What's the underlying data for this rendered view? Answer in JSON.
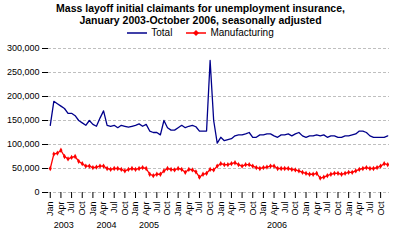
{
  "chart_data": {
    "type": "line",
    "title": "Mass layoff initial claimants for unemployment insurance,\nJanuary 2003-October 2006, seasonally adjusted",
    "categories": [
      "Jan",
      null,
      null,
      "Apr",
      null,
      null,
      "Jul",
      null,
      null,
      "Oct",
      null,
      null,
      "Jan",
      null,
      null,
      "Apr",
      null,
      null,
      "Jul",
      null,
      null,
      "Oct",
      null,
      null,
      "Jan",
      null,
      null,
      "Apr",
      null,
      null,
      "Jul",
      null,
      null,
      "Oct",
      null,
      null,
      "Jan",
      null,
      null,
      "Apr",
      null,
      null,
      "Jul",
      null,
      null,
      "Oct",
      null,
      null,
      "Jan",
      null,
      null,
      "Apr",
      null,
      null,
      "Jul",
      null,
      null,
      "Oct",
      null,
      null,
      "Jan",
      null,
      null,
      "Apr",
      null,
      null,
      "Jul",
      null,
      null,
      "Oct",
      null,
      null,
      "Jan",
      null,
      null,
      "Apr",
      null,
      null,
      "Jul",
      null,
      null,
      "Oct",
      null,
      null,
      "Jan",
      null,
      null,
      "Apr",
      null,
      null,
      "Jul",
      null,
      null,
      "Oct",
      null,
      null
    ],
    "series": [
      {
        "name": "Total",
        "color": "#00008B",
        "values": [
          140000,
          190000,
          185000,
          180000,
          175000,
          165000,
          165000,
          160000,
          150000,
          145000,
          140000,
          150000,
          142000,
          138000,
          155000,
          170000,
          140000,
          138000,
          140000,
          135000,
          140000,
          138000,
          136000,
          138000,
          140000,
          143000,
          138000,
          142000,
          128000,
          125000,
          125000,
          120000,
          150000,
          135000,
          130000,
          130000,
          135000,
          140000,
          135000,
          138000,
          140000,
          137000,
          128000,
          128000,
          128000,
          275000,
          150000,
          103000,
          115000,
          108000,
          110000,
          112000,
          118000,
          120000,
          120000,
          122000,
          125000,
          115000,
          115000,
          120000,
          120000,
          122000,
          122000,
          118000,
          115000,
          120000,
          120000,
          122000,
          118000,
          122000,
          125000,
          118000,
          115000,
          118000,
          118000,
          120000,
          118000,
          120000,
          115000,
          118000,
          118000,
          115000,
          115000,
          118000,
          118000,
          120000,
          122000,
          128000,
          128000,
          125000,
          118000,
          115000,
          115000,
          115000,
          115000,
          118000
        ]
      },
      {
        "name": "Manufacturing",
        "color": "#FF0000",
        "marker": "diamond",
        "values": [
          50000,
          80000,
          82000,
          88000,
          75000,
          70000,
          73000,
          75000,
          65000,
          60000,
          55000,
          55000,
          52000,
          53000,
          55000,
          55000,
          50000,
          48000,
          50000,
          50000,
          48000,
          45000,
          48000,
          50000,
          48000,
          50000,
          52000,
          50000,
          38000,
          35000,
          38000,
          38000,
          45000,
          50000,
          48000,
          47000,
          50000,
          48000,
          42000,
          48000,
          47000,
          43000,
          32000,
          38000,
          40000,
          48000,
          47000,
          55000,
          60000,
          58000,
          58000,
          60000,
          62000,
          58000,
          55000,
          58000,
          58000,
          55000,
          52000,
          50000,
          52000,
          53000,
          55000,
          55000,
          50000,
          50000,
          50000,
          50000,
          48000,
          47000,
          45000,
          42000,
          40000,
          38000,
          38000,
          40000,
          30000,
          32000,
          35000,
          38000,
          40000,
          40000,
          38000,
          40000,
          42000,
          42000,
          45000,
          48000,
          50000,
          52000,
          50000,
          50000,
          52000,
          55000,
          60000,
          58000
        ]
      }
    ],
    "annotations": [
      {
        "text": "2003",
        "x": 1
      },
      {
        "text": "2004",
        "x": 13
      },
      {
        "text": "2005",
        "x": 25
      },
      {
        "text": "2006",
        "x": 61
      }
    ],
    "ylim": [
      0,
      300000
    ],
    "yticks": [
      0,
      {
        "value": 50000,
        "label": "50,000"
      },
      {
        "value": 100000,
        "label": "100,000"
      },
      {
        "value": 150000,
        "label": "150,000"
      },
      {
        "value": 200000,
        "label": "200,000"
      },
      {
        "value": 250000,
        "label": "250,000"
      },
      {
        "value": 300000,
        "label": "300,000"
      }
    ],
    "grid": true,
    "legend": "top"
  }
}
